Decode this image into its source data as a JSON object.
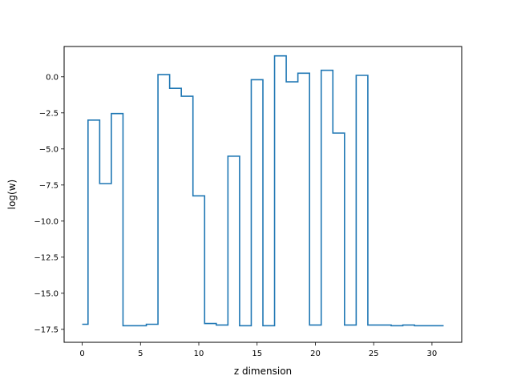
{
  "chart_data": {
    "type": "line",
    "drawstyle": "steps-mid",
    "title": "",
    "xlabel": "z dimension",
    "ylabel": "log(w)",
    "xlim": [
      -1.55,
      32.55
    ],
    "ylim": [
      -18.4,
      2.1
    ],
    "xticks": [
      0,
      5,
      10,
      15,
      20,
      25,
      30
    ],
    "xtick_labels": [
      "0",
      "5",
      "10",
      "15",
      "20",
      "25",
      "30"
    ],
    "yticks": [
      0.0,
      -2.5,
      -5.0,
      -7.5,
      -10.0,
      -12.5,
      -15.0,
      -17.5
    ],
    "ytick_labels": [
      "0.0",
      "−2.5",
      "−5.0",
      "−7.5",
      "−10.0",
      "−12.5",
      "−15.0",
      "−17.5"
    ],
    "grid": false,
    "legend": false,
    "series": [
      {
        "color": "#1f77b4",
        "x": [
          0,
          1,
          2,
          3,
          4,
          5,
          6,
          7,
          8,
          9,
          10,
          11,
          12,
          13,
          14,
          15,
          16,
          17,
          18,
          19,
          20,
          21,
          22,
          23,
          24,
          25,
          26,
          27,
          28,
          29,
          30,
          31
        ],
        "y": [
          -17.15,
          -3.0,
          -7.4,
          -2.55,
          -17.25,
          -17.25,
          -17.15,
          0.15,
          -0.8,
          -1.35,
          -8.25,
          -17.1,
          -17.2,
          -5.5,
          -17.25,
          -0.2,
          -17.25,
          1.45,
          -0.35,
          0.25,
          -17.2,
          0.45,
          -3.9,
          -17.2,
          0.1,
          -17.2,
          -17.2,
          -17.25,
          -17.2,
          -17.25,
          -17.25,
          -17.25
        ]
      }
    ]
  }
}
